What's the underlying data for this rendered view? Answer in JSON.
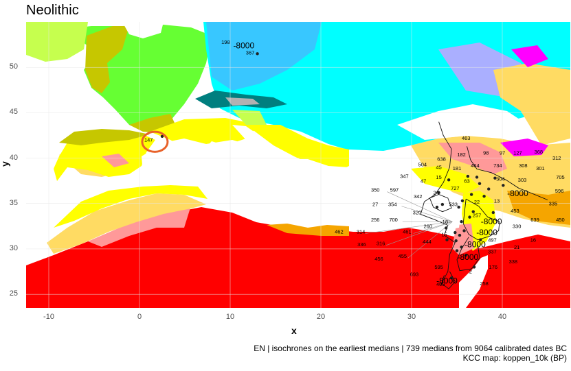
{
  "title": "Neolithic",
  "axes": {
    "x_label": "x",
    "y_label": "y",
    "x_ticks": [
      "-10",
      "0",
      "10",
      "20",
      "30",
      "40"
    ],
    "y_ticks": [
      "50",
      "45",
      "40",
      "35",
      "30",
      "25"
    ],
    "x_range": [
      -12.5,
      47.5
    ],
    "y_range": [
      23.5,
      55.0
    ]
  },
  "caption": {
    "line1": "EN | isochrones on the earliest medians | 739 medians from 9064 calibrated dates BC",
    "line2": "KCC map: koppen_10k (BP)"
  },
  "colors": {
    "sea": "#ffffff",
    "tropical_desert": "#ff0000",
    "hot_semiarid": "#f5a500",
    "cold_desert": "#ff9999",
    "cold_semiarid": "#ffdb63",
    "hot_summer_mediterranean": "#ffff00",
    "warm_summer_mediterranean": "#c6c700",
    "humid_subtropical": "#c6ff4e",
    "oceanic": "#66ff33",
    "humid_continental": "#00ffff",
    "warm_continental": "#38c7ff",
    "dry_summer_continental": "#ff00ff",
    "subarctic": "#007f7f",
    "tundra": "#b2b2b2",
    "dry_winter": "#aaafff",
    "highlight_circle": "#e8622a"
  },
  "map_labels": [
    {
      "text": "198",
      "lon": 9.5,
      "lat": 52.6
    },
    {
      "text": "-8000",
      "lon": 11.5,
      "lat": 52.1
    },
    {
      "text": "367",
      "lon": 12.2,
      "lat": 51.4
    },
    {
      "text": "147",
      "lon": 1.0,
      "lat": 41.8
    },
    {
      "text": "463",
      "lon": 36.0,
      "lat": 42.0
    },
    {
      "text": "504",
      "lon": 31.2,
      "lat": 39.1
    },
    {
      "text": "638",
      "lon": 33.3,
      "lat": 39.7
    },
    {
      "text": "182",
      "lon": 35.5,
      "lat": 40.2
    },
    {
      "text": "98",
      "lon": 38.2,
      "lat": 40.4
    },
    {
      "text": "97",
      "lon": 40.0,
      "lat": 40.4
    },
    {
      "text": "127",
      "lon": 41.7,
      "lat": 40.4
    },
    {
      "text": "368",
      "lon": 44.0,
      "lat": 40.5
    },
    {
      "text": "312",
      "lon": 46.0,
      "lat": 39.8
    },
    {
      "text": "45",
      "lon": 33.0,
      "lat": 38.8
    },
    {
      "text": "181",
      "lon": 35.0,
      "lat": 38.7
    },
    {
      "text": "464",
      "lon": 37.0,
      "lat": 39.0
    },
    {
      "text": "734",
      "lon": 39.5,
      "lat": 39.0
    },
    {
      "text": "308",
      "lon": 42.3,
      "lat": 39.0
    },
    {
      "text": "301",
      "lon": 44.2,
      "lat": 38.7
    },
    {
      "text": "347",
      "lon": 29.2,
      "lat": 37.8
    },
    {
      "text": "47",
      "lon": 31.3,
      "lat": 37.3
    },
    {
      "text": "15",
      "lon": 33.0,
      "lat": 37.7
    },
    {
      "text": "63",
      "lon": 36.1,
      "lat": 37.3
    },
    {
      "text": "304",
      "lon": 39.8,
      "lat": 37.5
    },
    {
      "text": "303",
      "lon": 42.2,
      "lat": 37.4
    },
    {
      "text": "705",
      "lon": 46.4,
      "lat": 37.7
    },
    {
      "text": "350",
      "lon": 26.0,
      "lat": 36.3
    },
    {
      "text": "597",
      "lon": 28.1,
      "lat": 36.3
    },
    {
      "text": "727",
      "lon": 34.8,
      "lat": 36.5
    },
    {
      "text": "24",
      "lon": 32.7,
      "lat": 36.0
    },
    {
      "text": "342",
      "lon": 30.7,
      "lat": 35.6
    },
    {
      "text": "596",
      "lon": 46.3,
      "lat": 36.2
    },
    {
      "text": "-8000",
      "lon": 41.7,
      "lat": 35.8
    },
    {
      "text": "27",
      "lon": 26.0,
      "lat": 34.7
    },
    {
      "text": "354",
      "lon": 27.9,
      "lat": 34.7
    },
    {
      "text": "533",
      "lon": 34.6,
      "lat": 34.7
    },
    {
      "text": "22",
      "lon": 37.2,
      "lat": 35.0
    },
    {
      "text": "13",
      "lon": 39.4,
      "lat": 35.1
    },
    {
      "text": "335",
      "lon": 45.6,
      "lat": 34.8
    },
    {
      "text": "320",
      "lon": 30.6,
      "lat": 33.8
    },
    {
      "text": "453",
      "lon": 41.4,
      "lat": 34.0
    },
    {
      "text": "256",
      "lon": 26.0,
      "lat": 33.0
    },
    {
      "text": "700",
      "lon": 28.0,
      "lat": 33.0
    },
    {
      "text": "18",
      "lon": 33.7,
      "lat": 32.8
    },
    {
      "text": "257",
      "lon": 37.2,
      "lat": 33.5
    },
    {
      "text": "-8000",
      "lon": 38.8,
      "lat": 32.7
    },
    {
      "text": "639",
      "lon": 43.6,
      "lat": 33.0
    },
    {
      "text": "450",
      "lon": 46.4,
      "lat": 33.0
    },
    {
      "text": "260",
      "lon": 31.8,
      "lat": 32.3
    },
    {
      "text": "330",
      "lon": 41.6,
      "lat": 32.3
    },
    {
      "text": "462",
      "lon": 22.0,
      "lat": 31.7
    },
    {
      "text": "314",
      "lon": 24.4,
      "lat": 31.7
    },
    {
      "text": "461",
      "lon": 29.5,
      "lat": 31.7
    },
    {
      "text": "15",
      "lon": 33.6,
      "lat": 31.4
    },
    {
      "text": "-8000",
      "lon": 38.3,
      "lat": 31.5
    },
    {
      "text": "497",
      "lon": 38.9,
      "lat": 30.8
    },
    {
      "text": "16",
      "lon": 43.4,
      "lat": 30.8
    },
    {
      "text": "444",
      "lon": 31.7,
      "lat": 30.6
    },
    {
      "text": "336",
      "lon": 24.5,
      "lat": 30.3
    },
    {
      "text": "316",
      "lon": 26.6,
      "lat": 30.4
    },
    {
      "text": "-8000",
      "lon": 37.0,
      "lat": 30.2
    },
    {
      "text": "21",
      "lon": 41.6,
      "lat": 30.0
    },
    {
      "text": "337",
      "lon": 38.9,
      "lat": 29.5
    },
    {
      "text": "455",
      "lon": 29.0,
      "lat": 29.0
    },
    {
      "text": "-8000",
      "lon": 36.2,
      "lat": 28.8
    },
    {
      "text": "456",
      "lon": 26.4,
      "lat": 28.7
    },
    {
      "text": "338",
      "lon": 41.2,
      "lat": 28.4
    },
    {
      "text": "595",
      "lon": 33.0,
      "lat": 27.8
    },
    {
      "text": "176",
      "lon": 39.0,
      "lat": 27.8
    },
    {
      "text": "2",
      "lon": 36.5,
      "lat": 27.3
    },
    {
      "text": "693",
      "lon": 30.3,
      "lat": 27.0
    },
    {
      "text": "-8000",
      "lon": 33.9,
      "lat": 26.2
    },
    {
      "text": "258",
      "lon": 38.0,
      "lat": 26.0
    },
    {
      "text": "409",
      "lon": 33.2,
      "lat": 25.9
    }
  ],
  "sites": [
    {
      "lon": 2.5,
      "lat": 42.4
    },
    {
      "lon": 13.0,
      "lat": 51.5
    },
    {
      "lon": 36.2,
      "lat": 38.0
    },
    {
      "lon": 37.5,
      "lat": 37.2
    },
    {
      "lon": 38.5,
      "lat": 36.6
    },
    {
      "lon": 39.2,
      "lat": 37.8
    },
    {
      "lon": 38.0,
      "lat": 35.8
    },
    {
      "lon": 36.6,
      "lat": 36.0
    },
    {
      "lon": 35.6,
      "lat": 35.3
    },
    {
      "lon": 36.8,
      "lat": 34.1
    },
    {
      "lon": 35.5,
      "lat": 33.0
    },
    {
      "lon": 35.8,
      "lat": 32.0
    },
    {
      "lon": 35.3,
      "lat": 31.5
    },
    {
      "lon": 34.9,
      "lat": 30.9
    },
    {
      "lon": 35.5,
      "lat": 30.2
    },
    {
      "lon": 34.8,
      "lat": 31.8
    },
    {
      "lon": 36.0,
      "lat": 29.3
    },
    {
      "lon": 35.0,
      "lat": 29.8
    },
    {
      "lon": 33.4,
      "lat": 34.9
    },
    {
      "lon": 32.8,
      "lat": 34.6
    },
    {
      "lon": 33.0,
      "lat": 36.2
    },
    {
      "lon": 34.1,
      "lat": 37.6
    },
    {
      "lon": 33.8,
      "lat": 32.3
    },
    {
      "lon": 40.1,
      "lat": 37.0
    },
    {
      "lon": 39.0,
      "lat": 34.0
    },
    {
      "lon": 36.4,
      "lat": 33.5
    },
    {
      "lon": 37.6,
      "lat": 31.0
    },
    {
      "lon": 36.9,
      "lat": 28.0
    },
    {
      "lon": 34.4,
      "lat": 26.8
    },
    {
      "lon": 33.9,
      "lat": 31.0
    },
    {
      "lon": 35.2,
      "lat": 34.6
    },
    {
      "lon": 37.2,
      "lat": 37.9
    }
  ],
  "highlight": {
    "lon": 1.7,
    "lat": 41.8,
    "rx_deg": 1.4,
    "ry_deg": 1.1
  }
}
